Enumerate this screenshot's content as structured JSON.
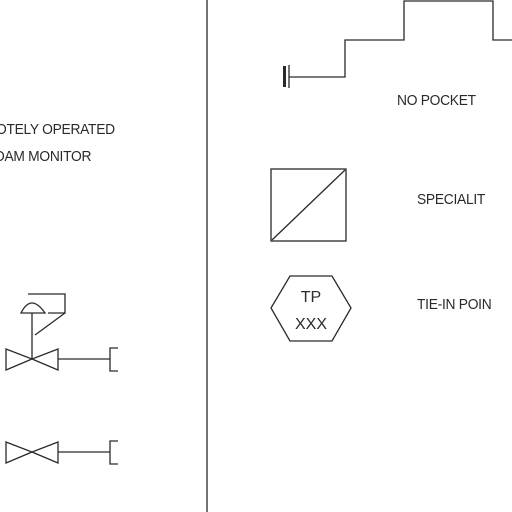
{
  "labels": {
    "remote_line1": "OTELY OPERATED",
    "remote_line2": "OAM MONITOR",
    "no_pocket": "NO POCKET",
    "speciality": "SPECIALIT",
    "tie_in": "TIE-IN POIN"
  },
  "tie_in_symbol": {
    "top_text": "TP",
    "bottom_text": "XXX"
  },
  "colors": {
    "line": "#2a2a2a",
    "background": "#ffffff"
  }
}
